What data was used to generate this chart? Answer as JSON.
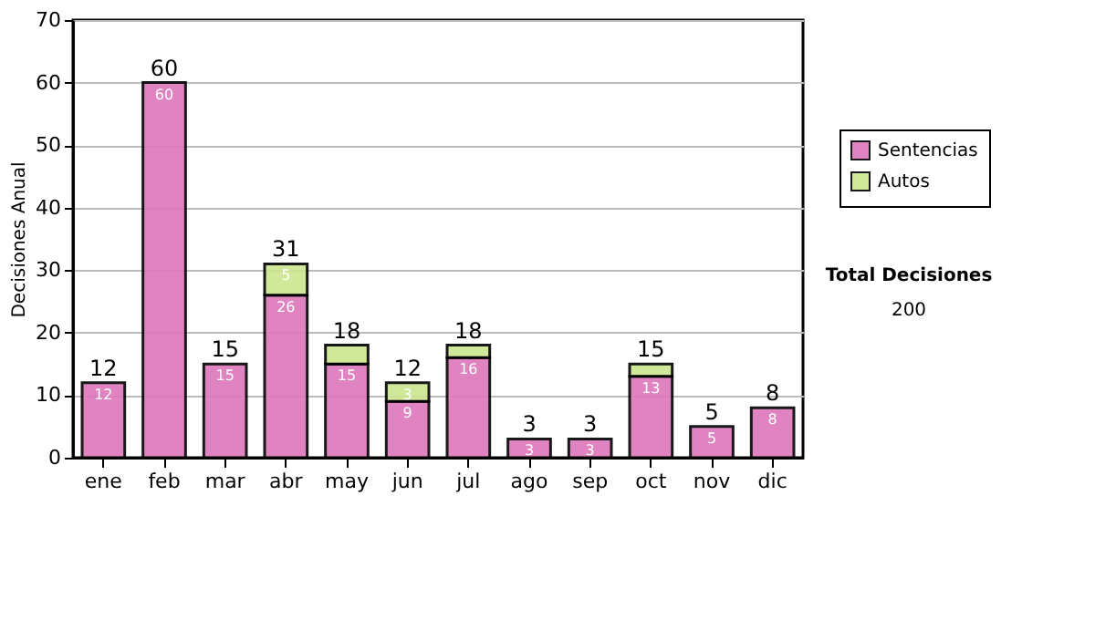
{
  "chart_data": {
    "type": "bar",
    "stacked": true,
    "ylabel": "Decisiones Anual",
    "categories": [
      "ene",
      "feb",
      "mar",
      "abr",
      "may",
      "jun",
      "jul",
      "ago",
      "sep",
      "oct",
      "nov",
      "dic"
    ],
    "series": [
      {
        "name": "Sentencias",
        "color": "#dd77bb",
        "values": [
          12,
          60,
          15,
          26,
          15,
          9,
          16,
          3,
          3,
          13,
          5,
          8
        ],
        "value_labels": [
          "12",
          "60",
          "15",
          "26",
          "15",
          "9",
          "16",
          "3",
          "3",
          "13",
          "5",
          "8"
        ]
      },
      {
        "name": "Autos",
        "color": "#cce68f",
        "values": [
          null,
          null,
          null,
          5,
          3,
          3,
          2,
          null,
          null,
          2,
          null,
          null
        ],
        "value_labels": [
          null,
          null,
          null,
          "5",
          null,
          "3",
          null,
          null,
          null,
          null,
          null,
          null
        ]
      }
    ],
    "totals": [
      "12",
      "60",
      "15",
      "31",
      "18",
      "12",
      "18",
      "3",
      "3",
      "15",
      "5",
      "8"
    ],
    "ylim": [
      0,
      70
    ],
    "yticks": [
      0,
      10,
      20,
      30,
      40,
      50,
      60,
      70
    ],
    "grid": "y",
    "legend": "right",
    "annotations": [
      "Total Decisiones",
      "200"
    ]
  }
}
